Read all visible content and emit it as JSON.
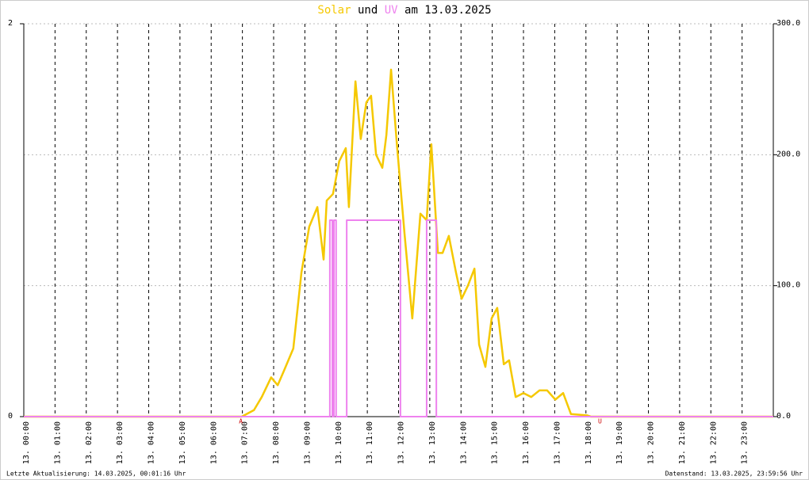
{
  "chart_data": {
    "type": "line",
    "title_connector": "und",
    "title_date": "am 13.03.2025",
    "xlim": [
      0,
      24
    ],
    "xticks": [
      {
        "value": 0,
        "label": "13. 00:00"
      },
      {
        "value": 1,
        "label": "13. 01:00"
      },
      {
        "value": 2,
        "label": "13. 02:00"
      },
      {
        "value": 3,
        "label": "13. 03:00"
      },
      {
        "value": 4,
        "label": "13. 04:00"
      },
      {
        "value": 5,
        "label": "13. 05:00"
      },
      {
        "value": 6,
        "label": "13. 06:00"
      },
      {
        "value": 7,
        "label": "13. 07:00"
      },
      {
        "value": 8,
        "label": "13. 08:00"
      },
      {
        "value": 9,
        "label": "13. 09:00"
      },
      {
        "value": 10,
        "label": "13. 10:00"
      },
      {
        "value": 11,
        "label": "13. 11:00"
      },
      {
        "value": 12,
        "label": "13. 12:00"
      },
      {
        "value": 13,
        "label": "13. 13:00"
      },
      {
        "value": 14,
        "label": "13. 14:00"
      },
      {
        "value": 15,
        "label": "13. 15:00"
      },
      {
        "value": 16,
        "label": "13. 16:00"
      },
      {
        "value": 17,
        "label": "13. 17:00"
      },
      {
        "value": 18,
        "label": "13. 18:00"
      },
      {
        "value": 19,
        "label": "13. 19:00"
      },
      {
        "value": 20,
        "label": "13. 20:00"
      },
      {
        "value": 21,
        "label": "13. 21:00"
      },
      {
        "value": 22,
        "label": "13. 22:00"
      },
      {
        "value": 23,
        "label": "13. 23:00"
      }
    ],
    "ylim": [
      0,
      2
    ],
    "yticks": [
      0,
      2
    ],
    "y2lim": [
      0,
      300
    ],
    "y2ticks": [
      {
        "value": 0,
        "label": "0.0"
      },
      {
        "value": 100,
        "label": "100.0"
      },
      {
        "value": 200,
        "label": "200.0"
      },
      {
        "value": 300,
        "label": "300.0"
      }
    ],
    "grid": true,
    "series": [
      {
        "name": "Solar",
        "color": "#f5c800",
        "axis": "y2",
        "x": [
          0,
          6.98,
          7.37,
          7.62,
          7.92,
          8.13,
          8.33,
          8.63,
          8.89,
          9.14,
          9.4,
          9.6,
          9.7,
          9.9,
          10.1,
          10.31,
          10.41,
          10.62,
          10.79,
          10.97,
          11.12,
          11.28,
          11.48,
          11.61,
          11.76,
          11.94,
          12.19,
          12.44,
          12.7,
          12.9,
          13.05,
          13.26,
          13.41,
          13.61,
          13.84,
          14.02,
          14.22,
          14.43,
          14.58,
          14.78,
          14.98,
          15.16,
          15.37,
          15.54,
          15.75,
          16.0,
          16.25,
          16.51,
          16.76,
          17.02,
          17.27,
          17.52,
          18.03,
          18.16,
          24
        ],
        "values": [
          0,
          0,
          5,
          15,
          30,
          24,
          35,
          52,
          110,
          145,
          160,
          120,
          165,
          170,
          195,
          205,
          160,
          256,
          212,
          240,
          245,
          200,
          190,
          215,
          265,
          210,
          140,
          75,
          155,
          150,
          208,
          125,
          125,
          138,
          110,
          90,
          100,
          113,
          55,
          38,
          75,
          83,
          40,
          43,
          15,
          18,
          15,
          20,
          20,
          13,
          18,
          2,
          1,
          0,
          0
        ]
      },
      {
        "name": "UV",
        "color": "#ee82ee",
        "x": [
          0,
          9.8,
          9.8,
          9.88,
          9.88,
          9.93,
          9.93,
          10.0,
          10.0,
          10.34,
          10.34,
          12.06,
          12.06,
          12.9,
          12.9,
          13.21,
          13.21,
          24
        ],
        "values": [
          0,
          0,
          1,
          1,
          0,
          0,
          1,
          1,
          0,
          0,
          1,
          1,
          0,
          0,
          1,
          1,
          0,
          0
        ]
      }
    ],
    "annotations": [
      {
        "text": "A",
        "x": 6.95
      },
      {
        "text": "U",
        "x": 18.45
      }
    ],
    "footer_left": "Letzte Aktualisierung: 14.03.2025, 00:01:16 Uhr",
    "footer_right": "Datenstand: 13.03.2025, 23:59:56 Uhr"
  }
}
